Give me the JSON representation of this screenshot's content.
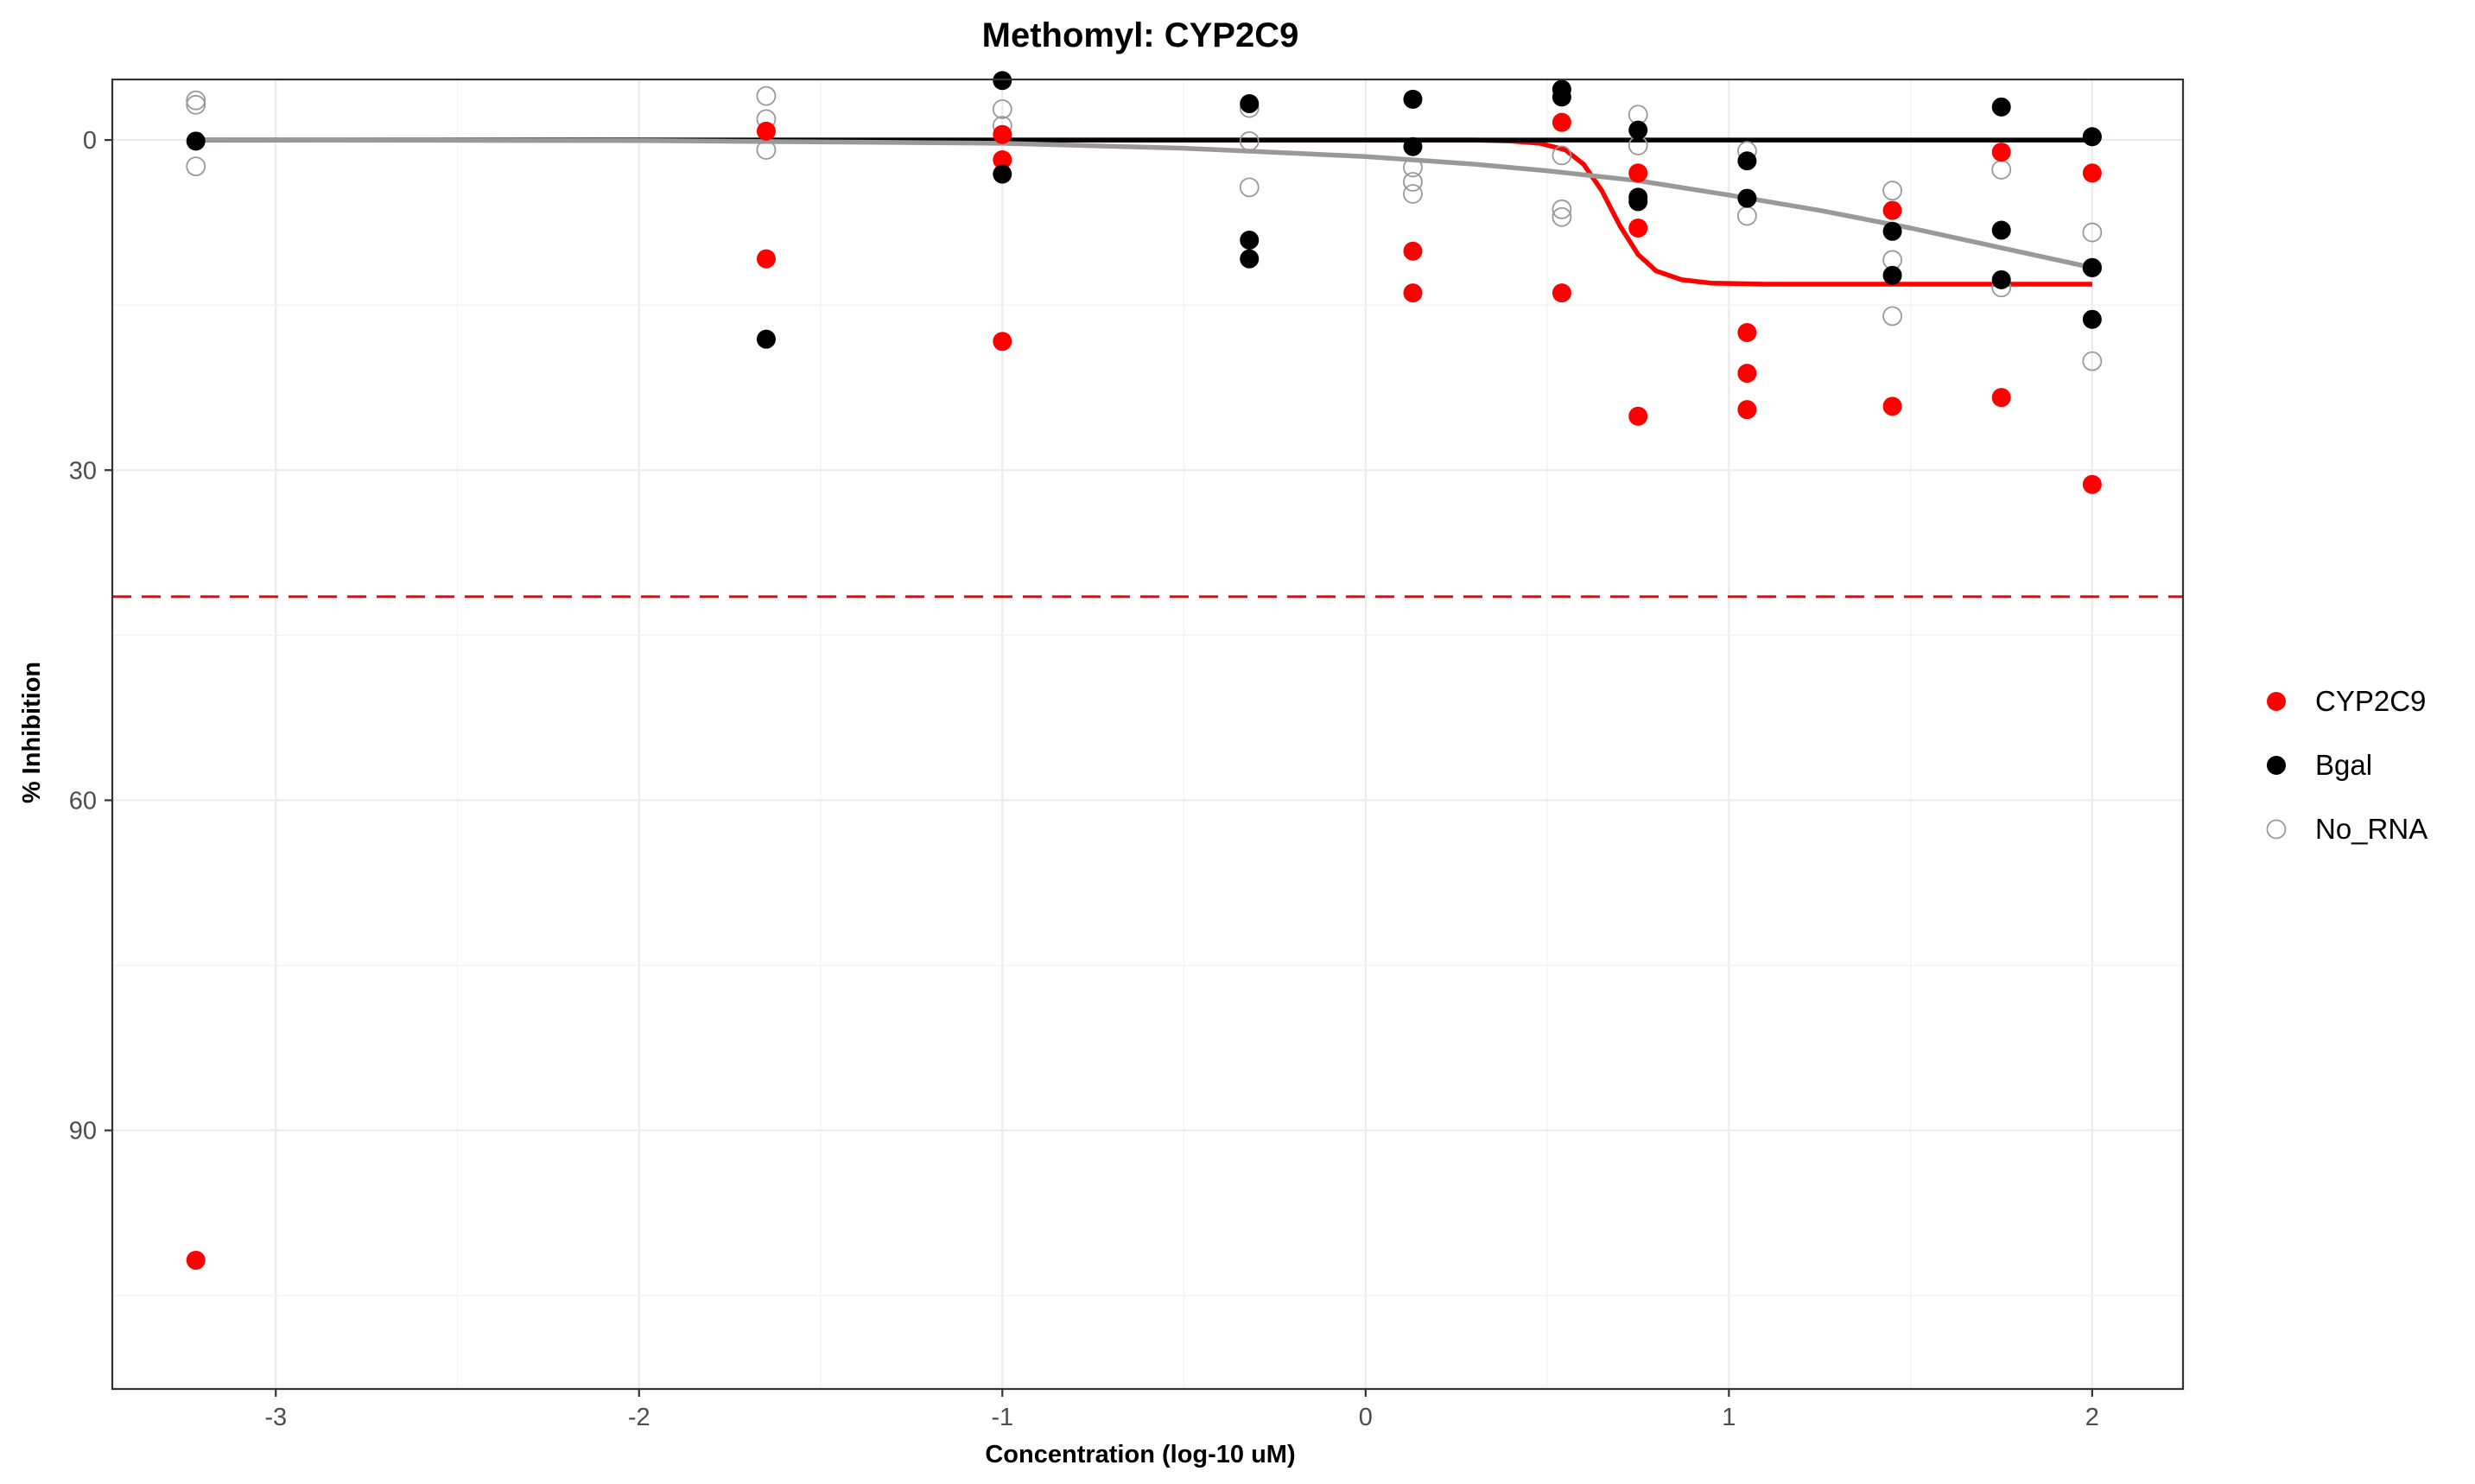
{
  "chart_data": {
    "type": "scatter",
    "title": "Methomyl: CYP2C9",
    "xlabel": "Concentration (log-10 uM)",
    "ylabel": "% Inhibition",
    "xlim": [
      -3.45,
      2.25
    ],
    "ylim": [
      -5.5,
      113.5
    ],
    "y_reversed": true,
    "x_ticks": [
      -3,
      -2,
      -1,
      0,
      1,
      2
    ],
    "x_tick_labels": [
      "-3",
      "-2",
      "-1",
      "0",
      "1",
      "2"
    ],
    "y_ticks": [
      0,
      30,
      60,
      90
    ],
    "y_tick_labels": [
      "0",
      "30",
      "60",
      "90"
    ],
    "grid": true,
    "threshold_line": {
      "y": 41.5,
      "color": "#FF0000",
      "style": "dashed"
    },
    "legend_position": "right",
    "series": [
      {
        "name": "CYP2C9",
        "color": "#FF0000",
        "marker": "filled-circle",
        "points": [
          [
            -3.22,
            101.8
          ],
          [
            -1.65,
            -0.8
          ],
          [
            -1.65,
            10.8
          ],
          [
            -1.0,
            -0.5
          ],
          [
            -1.0,
            1.8
          ],
          [
            -1.0,
            18.3
          ],
          [
            0.13,
            10.1
          ],
          [
            0.13,
            13.9
          ],
          [
            0.54,
            -1.6
          ],
          [
            0.54,
            13.9
          ],
          [
            0.75,
            3.0
          ],
          [
            0.75,
            8.0
          ],
          [
            0.75,
            25.1
          ],
          [
            1.05,
            17.5
          ],
          [
            1.05,
            21.2
          ],
          [
            1.05,
            24.5
          ],
          [
            1.45,
            6.4
          ],
          [
            1.45,
            24.2
          ],
          [
            1.75,
            1.1
          ],
          [
            1.75,
            23.4
          ],
          [
            2.0,
            -0.3
          ],
          [
            2.0,
            3.0
          ],
          [
            2.0,
            31.3
          ]
        ],
        "curve": [
          [
            -3.22,
            0
          ],
          [
            0.3,
            0
          ],
          [
            0.4,
            0.1
          ],
          [
            0.48,
            0.3
          ],
          [
            0.55,
            0.9
          ],
          [
            0.6,
            2.2
          ],
          [
            0.65,
            4.6
          ],
          [
            0.7,
            7.8
          ],
          [
            0.75,
            10.4
          ],
          [
            0.8,
            11.9
          ],
          [
            0.87,
            12.7
          ],
          [
            0.95,
            13.0
          ],
          [
            1.1,
            13.1
          ],
          [
            1.5,
            13.1
          ],
          [
            2.0,
            13.1
          ]
        ]
      },
      {
        "name": "Bgal",
        "color": "#000000",
        "marker": "filled-circle",
        "points": [
          [
            -3.22,
            0.1
          ],
          [
            -1.65,
            18.1
          ],
          [
            -1.0,
            -5.4
          ],
          [
            -1.0,
            3.1
          ],
          [
            -0.32,
            -3.3
          ],
          [
            -0.32,
            9.1
          ],
          [
            -0.32,
            10.8
          ],
          [
            0.13,
            -3.7
          ],
          [
            0.13,
            0.6
          ],
          [
            0.54,
            -4.6
          ],
          [
            0.54,
            -3.9
          ],
          [
            0.75,
            -0.9
          ],
          [
            0.75,
            5.2
          ],
          [
            0.75,
            5.6
          ],
          [
            1.05,
            1.9
          ],
          [
            1.05,
            5.3
          ],
          [
            1.45,
            8.3
          ],
          [
            1.45,
            12.3
          ],
          [
            1.75,
            -3.0
          ],
          [
            1.75,
            8.2
          ],
          [
            1.75,
            12.7
          ],
          [
            2.0,
            -0.3
          ],
          [
            2.0,
            11.6
          ],
          [
            2.0,
            16.3
          ]
        ],
        "curve": [
          [
            -3.22,
            0
          ],
          [
            2.0,
            0
          ]
        ]
      },
      {
        "name": "No_RNA",
        "color": "#999999",
        "marker": "open-circle",
        "points": [
          [
            -3.22,
            -3.6
          ],
          [
            -3.22,
            -3.2
          ],
          [
            -3.22,
            2.4
          ],
          [
            -1.65,
            -4.0
          ],
          [
            -1.65,
            -1.9
          ],
          [
            -1.65,
            0.9
          ],
          [
            -1.0,
            -2.8
          ],
          [
            -1.0,
            -1.3
          ],
          [
            -0.32,
            -2.9
          ],
          [
            -0.32,
            0.1
          ],
          [
            -0.32,
            4.3
          ],
          [
            0.13,
            2.5
          ],
          [
            0.13,
            3.8
          ],
          [
            0.13,
            4.9
          ],
          [
            0.54,
            1.4
          ],
          [
            0.54,
            6.3
          ],
          [
            0.54,
            7.0
          ],
          [
            0.75,
            -2.3
          ],
          [
            0.75,
            0.5
          ],
          [
            1.05,
            1.0
          ],
          [
            1.05,
            6.9
          ],
          [
            1.45,
            4.6
          ],
          [
            1.45,
            10.9
          ],
          [
            1.45,
            16.0
          ],
          [
            1.75,
            2.7
          ],
          [
            1.75,
            13.4
          ],
          [
            2.0,
            8.4
          ],
          [
            2.0,
            11.6
          ],
          [
            2.0,
            20.1
          ]
        ],
        "curve": [
          [
            -3.22,
            0
          ],
          [
            -2.0,
            0.05
          ],
          [
            -1.0,
            0.3
          ],
          [
            -0.5,
            0.75
          ],
          [
            0.0,
            1.5
          ],
          [
            0.3,
            2.2
          ],
          [
            0.5,
            2.8
          ],
          [
            0.75,
            3.7
          ],
          [
            1.0,
            5.0
          ],
          [
            1.25,
            6.4
          ],
          [
            1.5,
            8.0
          ],
          [
            1.75,
            9.8
          ],
          [
            2.0,
            11.6
          ]
        ]
      }
    ]
  }
}
